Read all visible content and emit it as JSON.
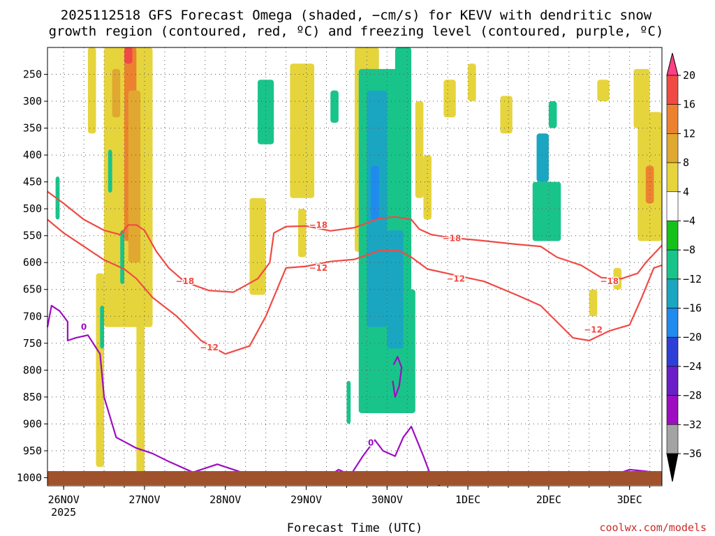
{
  "chart_data": {
    "type": "heatmap",
    "title_line1": "2025112518 GFS Forecast Omega (shaded, −cm/s) for KEVV with dendritic snow",
    "title_line2": "growth region (contoured, red, ºC) and freezing level (contoured, purple, ºC)",
    "xlabel": "Forecast Time (UTC)",
    "ylabel": "",
    "x_range_days": [
      0,
      7.6
    ],
    "y_range_hpa": [
      200,
      1015
    ],
    "x_ticks": [
      {
        "label": "26NOV",
        "sub": "2025",
        "day": 0.2
      },
      {
        "label": "27NOV",
        "sub": "",
        "day": 1.2
      },
      {
        "label": "28NOV",
        "sub": "",
        "day": 2.2
      },
      {
        "label": "29NOV",
        "sub": "",
        "day": 3.2
      },
      {
        "label": "30NOV",
        "sub": "",
        "day": 4.2
      },
      {
        "label": "1DEC",
        "sub": "",
        "day": 5.2
      },
      {
        "label": "2DEC",
        "sub": "",
        "day": 6.2
      },
      {
        "label": "3DEC",
        "sub": "",
        "day": 7.2
      }
    ],
    "y_ticks": [
      250,
      300,
      350,
      400,
      450,
      500,
      550,
      600,
      650,
      700,
      750,
      800,
      850,
      900,
      950,
      1000
    ],
    "colorbar": {
      "labels": [
        "20",
        "16",
        "12",
        "8",
        "4",
        "−4",
        "−8",
        "−12",
        "−16",
        "−20",
        "−24",
        "−28",
        "−32",
        "−36"
      ],
      "colors": [
        "#ff3f84",
        "#f04a44",
        "#ec8230",
        "#e0a830",
        "#e6d43c",
        "#ffffff",
        "#16c21a",
        "#19c48a",
        "#1aa6c0",
        "#1f8bee",
        "#2e3fd8",
        "#6a1fc8",
        "#9c0ec0",
        "#a3a3a3",
        "#000000"
      ]
    },
    "omega_cells": [
      {
        "x0": 0.5,
        "x1": 0.6,
        "p0": 200,
        "p1": 360,
        "v": 4
      },
      {
        "x0": 0.7,
        "x1": 1.3,
        "p0": 200,
        "p1": 720,
        "v": 4
      },
      {
        "x0": 0.95,
        "x1": 1.1,
        "p0": 200,
        "p1": 560,
        "v": 12
      },
      {
        "x0": 1.0,
        "x1": 1.15,
        "p0": 280,
        "p1": 600,
        "v": 8
      },
      {
        "x0": 0.8,
        "x1": 0.9,
        "p0": 240,
        "p1": 330,
        "v": 8
      },
      {
        "x0": 0.95,
        "x1": 1.05,
        "p0": 200,
        "p1": 230,
        "v": 16
      },
      {
        "x0": 0.75,
        "x1": 0.8,
        "p0": 390,
        "p1": 470,
        "v": -8
      },
      {
        "x0": 0.9,
        "x1": 0.95,
        "p0": 540,
        "p1": 640,
        "v": -8
      },
      {
        "x0": 0.6,
        "x1": 0.7,
        "p0": 620,
        "p1": 980,
        "v": 4
      },
      {
        "x0": 1.1,
        "x1": 1.2,
        "p0": 700,
        "p1": 1000,
        "v": 4
      },
      {
        "x0": 0.1,
        "x1": 0.15,
        "p0": 440,
        "p1": 520,
        "v": -8
      },
      {
        "x0": 0.65,
        "x1": 0.7,
        "p0": 680,
        "p1": 760,
        "v": -8
      },
      {
        "x0": 2.6,
        "x1": 2.8,
        "p0": 260,
        "p1": 380,
        "v": -8
      },
      {
        "x0": 2.5,
        "x1": 2.7,
        "p0": 480,
        "p1": 660,
        "v": 4
      },
      {
        "x0": 3.0,
        "x1": 3.3,
        "p0": 230,
        "p1": 480,
        "v": 4
      },
      {
        "x0": 3.1,
        "x1": 3.2,
        "p0": 500,
        "p1": 590,
        "v": 4
      },
      {
        "x0": 3.5,
        "x1": 3.6,
        "p0": 280,
        "p1": 340,
        "v": -8
      },
      {
        "x0": 3.8,
        "x1": 4.1,
        "p0": 200,
        "p1": 580,
        "v": 4
      },
      {
        "x0": 3.85,
        "x1": 4.5,
        "p0": 240,
        "p1": 880,
        "v": -8
      },
      {
        "x0": 3.95,
        "x1": 4.2,
        "p0": 280,
        "p1": 720,
        "v": -12
      },
      {
        "x0": 4.0,
        "x1": 4.1,
        "p0": 420,
        "p1": 520,
        "v": -16
      },
      {
        "x0": 4.2,
        "x1": 4.4,
        "p0": 540,
        "p1": 760,
        "v": -12
      },
      {
        "x0": 4.4,
        "x1": 4.55,
        "p0": 650,
        "p1": 880,
        "v": -8
      },
      {
        "x0": 4.3,
        "x1": 4.5,
        "p0": 200,
        "p1": 500,
        "v": -8
      },
      {
        "x0": 3.7,
        "x1": 3.75,
        "p0": 820,
        "p1": 900,
        "v": -8
      },
      {
        "x0": 4.55,
        "x1": 4.65,
        "p0": 300,
        "p1": 480,
        "v": 4
      },
      {
        "x0": 4.65,
        "x1": 4.75,
        "p0": 400,
        "p1": 520,
        "v": 4
      },
      {
        "x0": 4.9,
        "x1": 5.05,
        "p0": 260,
        "p1": 330,
        "v": 4
      },
      {
        "x0": 5.2,
        "x1": 5.3,
        "p0": 230,
        "p1": 300,
        "v": 4
      },
      {
        "x0": 5.6,
        "x1": 5.75,
        "p0": 290,
        "p1": 360,
        "v": 4
      },
      {
        "x0": 6.05,
        "x1": 6.2,
        "p0": 360,
        "p1": 450,
        "v": -12
      },
      {
        "x0": 6.0,
        "x1": 6.35,
        "p0": 450,
        "p1": 560,
        "v": -8
      },
      {
        "x0": 6.2,
        "x1": 6.3,
        "p0": 300,
        "p1": 350,
        "v": -8
      },
      {
        "x0": 6.8,
        "x1": 6.95,
        "p0": 260,
        "p1": 300,
        "v": 4
      },
      {
        "x0": 7.25,
        "x1": 7.45,
        "p0": 240,
        "p1": 350,
        "v": 4
      },
      {
        "x0": 7.3,
        "x1": 7.6,
        "p0": 320,
        "p1": 560,
        "v": 4
      },
      {
        "x0": 7.4,
        "x1": 7.5,
        "p0": 420,
        "p1": 490,
        "v": 12
      },
      {
        "x0": 6.7,
        "x1": 6.8,
        "p0": 650,
        "p1": 700,
        "v": 4
      },
      {
        "x0": 7.0,
        "x1": 7.1,
        "p0": 610,
        "p1": 650,
        "v": 4
      }
    ],
    "dendritic_contours": [
      {
        "label": "−18",
        "label_pos": [
          1.7,
          635
        ],
        "label2": "−18",
        "label2_pos": [
          3.35,
          530
        ],
        "label3": "−18",
        "label3_pos": [
          5.0,
          555
        ],
        "label4": "−18",
        "label4_pos": [
          6.95,
          635
        ],
        "points": [
          [
            0,
            468
          ],
          [
            0.2,
            490
          ],
          [
            0.45,
            520
          ],
          [
            0.7,
            540
          ],
          [
            0.9,
            548
          ],
          [
            1.0,
            530
          ],
          [
            1.1,
            530
          ],
          [
            1.2,
            540
          ],
          [
            1.35,
            580
          ],
          [
            1.5,
            610
          ],
          [
            1.7,
            636
          ],
          [
            2.0,
            652
          ],
          [
            2.3,
            655
          ],
          [
            2.6,
            630
          ],
          [
            2.75,
            600
          ],
          [
            2.8,
            545
          ],
          [
            2.95,
            533
          ],
          [
            3.2,
            532
          ],
          [
            3.5,
            541
          ],
          [
            3.8,
            535
          ],
          [
            4.1,
            518
          ],
          [
            4.3,
            515
          ],
          [
            4.5,
            520
          ],
          [
            4.6,
            538
          ],
          [
            4.75,
            548
          ],
          [
            5.0,
            554
          ],
          [
            5.3,
            558
          ],
          [
            5.8,
            566
          ],
          [
            6.1,
            570
          ],
          [
            6.3,
            590
          ],
          [
            6.6,
            605
          ],
          [
            6.85,
            628
          ],
          [
            7.1,
            630
          ],
          [
            7.3,
            620
          ],
          [
            7.4,
            600
          ],
          [
            7.6,
            568
          ]
        ]
      },
      {
        "label": "−12",
        "label_pos": [
          2.0,
          758
        ],
        "label2": "−12",
        "label2_pos": [
          3.35,
          610
        ],
        "label3": "−12",
        "label3_pos": [
          5.05,
          630
        ],
        "label4": "−12",
        "label4_pos": [
          6.75,
          725
        ],
        "points": [
          [
            0,
            520
          ],
          [
            0.2,
            545
          ],
          [
            0.45,
            570
          ],
          [
            0.7,
            595
          ],
          [
            0.95,
            612
          ],
          [
            1.1,
            630
          ],
          [
            1.3,
            665
          ],
          [
            1.6,
            700
          ],
          [
            1.9,
            745
          ],
          [
            2.2,
            770
          ],
          [
            2.5,
            755
          ],
          [
            2.7,
            700
          ],
          [
            2.95,
            610
          ],
          [
            3.2,
            607
          ],
          [
            3.5,
            598
          ],
          [
            3.8,
            594
          ],
          [
            4.1,
            578
          ],
          [
            4.35,
            578
          ],
          [
            4.5,
            590
          ],
          [
            4.7,
            612
          ],
          [
            5.0,
            622
          ],
          [
            5.4,
            635
          ],
          [
            5.8,
            660
          ],
          [
            6.1,
            680
          ],
          [
            6.3,
            710
          ],
          [
            6.5,
            740
          ],
          [
            6.7,
            745
          ],
          [
            6.95,
            727
          ],
          [
            7.2,
            716
          ],
          [
            7.35,
            665
          ],
          [
            7.5,
            610
          ],
          [
            7.6,
            605
          ]
        ]
      }
    ],
    "freezing_contours": [
      {
        "label": "0",
        "label_pos": [
          0.45,
          720
        ],
        "points": [
          [
            0,
            720
          ],
          [
            0.05,
            680
          ],
          [
            0.15,
            690
          ],
          [
            0.25,
            710
          ],
          [
            0.25,
            745
          ],
          [
            0.35,
            740
          ],
          [
            0.5,
            735
          ],
          [
            0.65,
            770
          ],
          [
            0.7,
            850
          ],
          [
            0.85,
            925
          ],
          [
            1.1,
            945
          ],
          [
            1.3,
            955
          ],
          [
            1.5,
            970
          ],
          [
            1.8,
            990
          ],
          [
            2.1,
            975
          ],
          [
            2.4,
            990
          ],
          [
            2.6,
            1005
          ]
        ]
      },
      {
        "label": "0",
        "label_pos": [
          4.0,
          935
        ],
        "points": [
          [
            3.4,
            1005
          ],
          [
            3.6,
            985
          ],
          [
            3.75,
            995
          ],
          [
            3.9,
            960
          ],
          [
            4.05,
            930
          ],
          [
            4.15,
            950
          ],
          [
            4.3,
            960
          ],
          [
            4.4,
            925
          ],
          [
            4.5,
            905
          ],
          [
            4.65,
            960
          ],
          [
            4.75,
            1000
          ],
          [
            4.85,
            1015
          ]
        ]
      },
      {
        "label": "",
        "label_pos": [
          4.3,
          810
        ],
        "points": [
          [
            4.28,
            790
          ],
          [
            4.33,
            775
          ],
          [
            4.38,
            795
          ],
          [
            4.35,
            830
          ],
          [
            4.3,
            850
          ],
          [
            4.27,
            820
          ]
        ]
      },
      {
        "label": "",
        "label_pos": [
          7.2,
          985
        ],
        "points": [
          [
            6.8,
            1005
          ],
          [
            7.0,
            995
          ],
          [
            7.2,
            985
          ],
          [
            7.4,
            988
          ],
          [
            7.48,
            990
          ],
          [
            7.5,
            998
          ]
        ]
      }
    ]
  },
  "credit": "coolwx.com/models"
}
